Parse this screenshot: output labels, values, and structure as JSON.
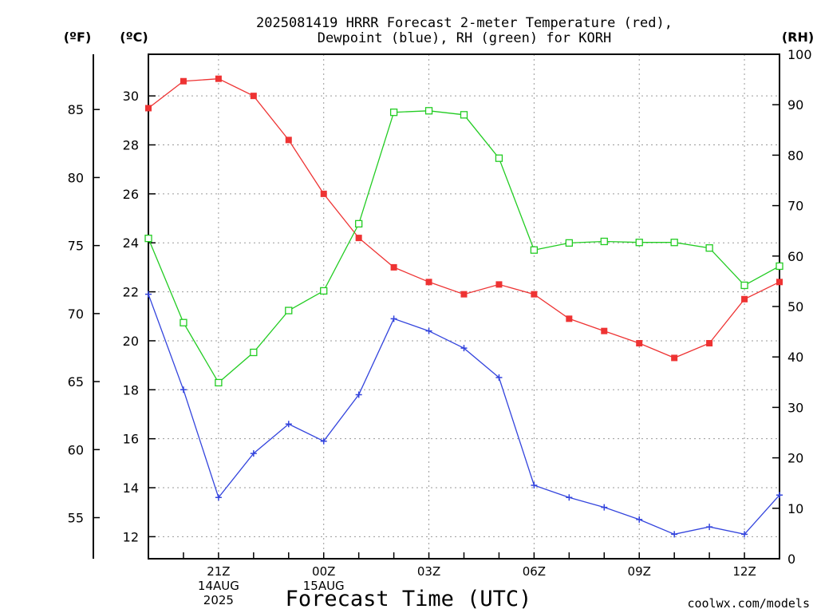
{
  "title_line1": "2025081419 HRRR Forecast 2-meter Temperature (red),",
  "title_line2": "Dewpoint (blue), RH (green) for KORH",
  "unit_f": "(ºF)",
  "unit_c": "(ºC)",
  "unit_rh": "(RH)",
  "xlabel": "Forecast Time (UTC)",
  "credit": "coolwx.com/models",
  "colors": {
    "temp": "#ee3333",
    "dew": "#3344dd",
    "rh": "#22cc22",
    "grid": "#9a9a9a",
    "credit": "#ee3333"
  },
  "chart_data": {
    "type": "line",
    "x": [
      "19Z",
      "20Z",
      "21Z",
      "22Z",
      "23Z",
      "00Z",
      "01Z",
      "02Z",
      "03Z",
      "04Z",
      "05Z",
      "06Z",
      "07Z",
      "08Z",
      "09Z",
      "10Z",
      "11Z",
      "12Z",
      "13Z"
    ],
    "x_tick_labels": [
      {
        "at": "21Z",
        "lines": [
          "21Z",
          "14AUG",
          "2025"
        ]
      },
      {
        "at": "00Z",
        "lines": [
          "00Z",
          "15AUG"
        ]
      },
      {
        "at": "03Z",
        "lines": [
          "03Z"
        ]
      },
      {
        "at": "06Z",
        "lines": [
          "06Z"
        ]
      },
      {
        "at": "09Z",
        "lines": [
          "09Z"
        ]
      },
      {
        "at": "12Z",
        "lines": [
          "12Z"
        ]
      }
    ],
    "y_left_c": {
      "ylim": [
        11.1,
        31.7
      ],
      "ticks": [
        12,
        14,
        16,
        18,
        20,
        22,
        24,
        26,
        28,
        30
      ]
    },
    "y_left_f": {
      "ticks": [
        55,
        60,
        65,
        70,
        75,
        80,
        85
      ]
    },
    "y_right_rh": {
      "ylim": [
        0,
        100
      ],
      "ticks": [
        0,
        10,
        20,
        30,
        40,
        50,
        60,
        70,
        80,
        90,
        100
      ]
    },
    "series": [
      {
        "name": "Temperature",
        "axis": "c",
        "marker": "filled-square",
        "values": [
          29.5,
          30.6,
          30.7,
          30.0,
          28.2,
          26.0,
          24.2,
          23.0,
          22.4,
          21.9,
          22.3,
          21.9,
          20.9,
          20.4,
          19.9,
          19.3,
          19.9,
          21.7,
          22.4
        ]
      },
      {
        "name": "Dewpoint",
        "axis": "c",
        "marker": "plus",
        "values": [
          21.9,
          18.0,
          13.6,
          15.4,
          16.6,
          15.9,
          17.8,
          20.9,
          20.4,
          19.7,
          18.5,
          14.1,
          13.6,
          13.2,
          12.7,
          12.1,
          12.4,
          12.1,
          13.7
        ]
      },
      {
        "name": "RH",
        "axis": "rh",
        "marker": "open-square",
        "values": [
          63.5,
          46.8,
          34.9,
          40.9,
          49.2,
          53.1,
          66.4,
          88.5,
          88.8,
          88.0,
          79.4,
          61.2,
          62.6,
          62.9,
          62.7,
          62.7,
          61.6,
          54.2,
          58.0
        ]
      }
    ]
  }
}
